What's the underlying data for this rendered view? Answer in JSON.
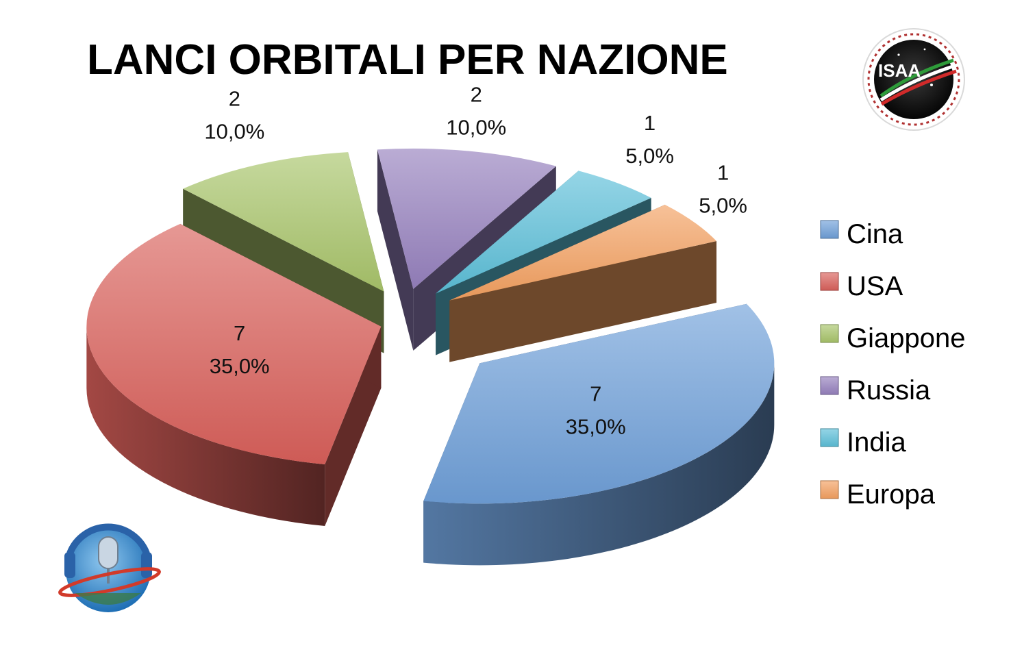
{
  "chart_data": {
    "type": "pie",
    "title": "LANCI ORBITALI PER NAZIONE",
    "categories": [
      "Cina",
      "USA",
      "Giappone",
      "Russia",
      "India",
      "Europa"
    ],
    "values": [
      7,
      7,
      2,
      2,
      1,
      1
    ],
    "labels": [
      {
        "value": "7",
        "percent": "35,0%"
      },
      {
        "value": "7",
        "percent": "35,0%"
      },
      {
        "value": "2",
        "percent": "10,0%"
      },
      {
        "value": "2",
        "percent": "10,0%"
      },
      {
        "value": "1",
        "percent": "5,0%"
      },
      {
        "value": "1",
        "percent": "5,0%"
      }
    ],
    "colors": [
      "#6f9fd8",
      "#d9605a",
      "#a8c46a",
      "#9580bd",
      "#5cbfd8",
      "#f3a060"
    ],
    "legend_position": "right",
    "style": "3d-exploded"
  },
  "logos": {
    "top_right": {
      "name": "isaa-logo",
      "text": "ISAA"
    },
    "bottom_left": {
      "name": "astronauticast-logo"
    }
  }
}
